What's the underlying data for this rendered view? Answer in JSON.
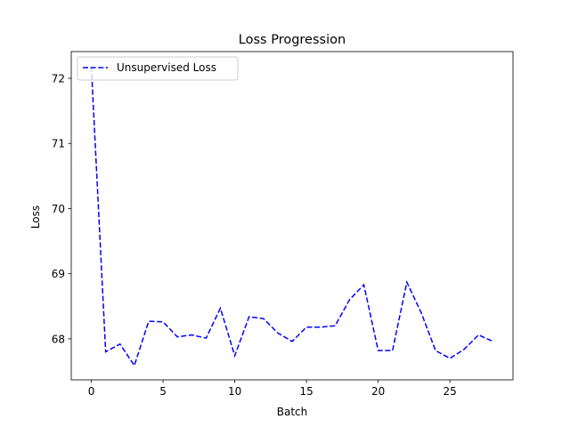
{
  "chart_data": {
    "type": "line",
    "title": "Loss Progression",
    "xlabel": "Batch",
    "ylabel": "Loss",
    "xlim": [
      -1.4,
      29.4
    ],
    "ylim": [
      67.37,
      72.41
    ],
    "xticks": [
      0,
      5,
      10,
      15,
      20,
      25
    ],
    "yticks": [
      68,
      69,
      70,
      71,
      72
    ],
    "grid": false,
    "legend_position": "top-left",
    "series": [
      {
        "name": "Unsupervised Loss",
        "color": "#0000ff",
        "line_style": "dashed",
        "x": [
          0,
          1,
          2,
          3,
          4,
          5,
          6,
          7,
          8,
          9,
          10,
          11,
          12,
          13,
          14,
          15,
          16,
          17,
          18,
          19,
          20,
          21,
          22,
          23,
          24,
          25,
          26,
          27,
          28
        ],
        "y": [
          72.18,
          67.8,
          67.92,
          67.59,
          68.27,
          68.26,
          68.03,
          68.06,
          68.01,
          68.47,
          67.74,
          68.34,
          68.31,
          68.09,
          67.96,
          68.18,
          68.18,
          68.2,
          68.6,
          68.83,
          67.82,
          67.82,
          68.87,
          68.4,
          67.82,
          67.7,
          67.84,
          68.06,
          67.96
        ]
      }
    ]
  }
}
